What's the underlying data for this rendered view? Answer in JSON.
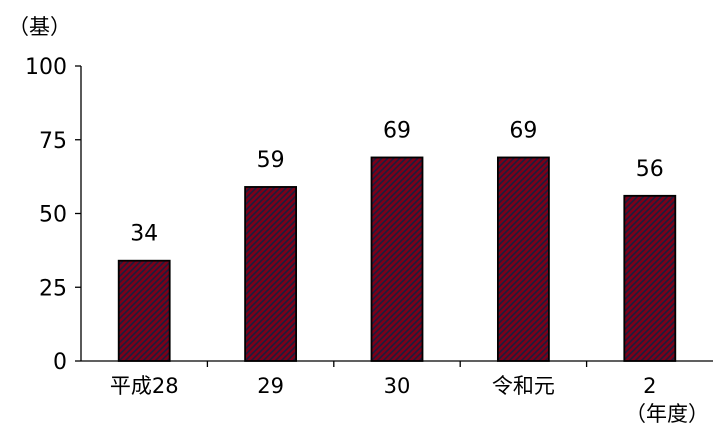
{
  "chart_data": {
    "type": "bar",
    "title": "",
    "xlabel": "（年度）",
    "ylabel": "（基）",
    "categories": [
      "平成28",
      "29",
      "30",
      "令和元",
      "2"
    ],
    "values": [
      34,
      59,
      69,
      69,
      56
    ],
    "data_labels": [
      "34",
      "59",
      "69",
      "69",
      "56"
    ],
    "ylim": [
      0,
      100
    ],
    "yticks": [
      0,
      25,
      50,
      75,
      100
    ],
    "grid": false,
    "legend": "none",
    "bar_color": "#7a0019",
    "bar_hatch_color": "#1c1c3c"
  }
}
